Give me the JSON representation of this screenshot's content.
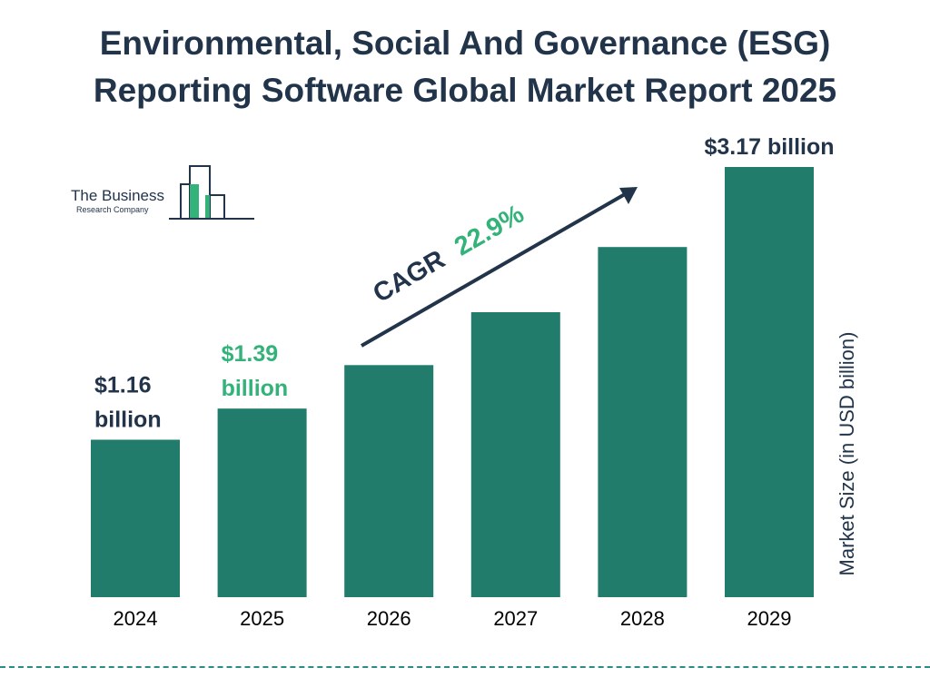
{
  "title": {
    "line1": "Environmental, Social And Governance (ESG)",
    "line2": "Reporting Software Global Market Report 2025"
  },
  "logo": {
    "line1": "The Business",
    "line2": "Research Company"
  },
  "colors": {
    "bar": "#217c6c",
    "dark_text": "#22344a",
    "highlight": "#33b37a",
    "divider": "#2b8c86"
  },
  "cagr": {
    "label": "CAGR",
    "value": "22.9%"
  },
  "chart_data": {
    "type": "bar",
    "categories": [
      "2024",
      "2025",
      "2026",
      "2027",
      "2028",
      "2029"
    ],
    "values": [
      1.16,
      1.39,
      1.71,
      2.1,
      2.58,
      3.17
    ],
    "value_labels": [
      {
        "index": 0,
        "lines": [
          "$1.16",
          "billion"
        ],
        "highlight": false
      },
      {
        "index": 1,
        "lines": [
          "$1.39",
          "billion"
        ],
        "highlight": true
      },
      {
        "index": 5,
        "lines": [
          "$3.17 billion"
        ],
        "highlight": false
      }
    ],
    "title": "Environmental, Social And Governance (ESG) Reporting Software Global Market Report 2025",
    "xlabel": "",
    "ylabel": "Market Size (in USD billion)",
    "ylim": [
      0,
      3.17
    ],
    "grid": false
  }
}
